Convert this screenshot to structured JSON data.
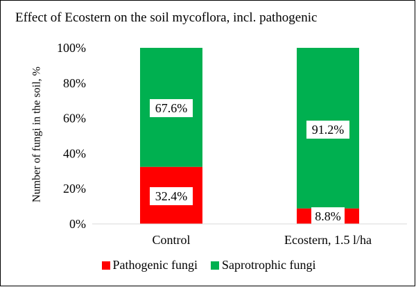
{
  "chart_data": {
    "type": "bar",
    "stacked": true,
    "percent": true,
    "title": "Effect of Ecostern on the soil mycoflora, incl. pathogenic",
    "xlabel": "",
    "ylabel": "Number of fungi in the soil, %",
    "categories": [
      "Control",
      "Ecostern, 1.5 l/ha"
    ],
    "series": [
      {
        "name": "Pathogenic fungi",
        "color": "#ff0000",
        "values": [
          32.4,
          8.8
        ],
        "labels": [
          "32.4%",
          "8.8%"
        ]
      },
      {
        "name": "Saprotrophic fungi",
        "color": "#00b050",
        "values": [
          67.6,
          91.2
        ],
        "labels": [
          "67.6%",
          "91.2%"
        ]
      }
    ],
    "ylim": [
      0,
      100
    ],
    "yticks": [
      "0%",
      "20%",
      "40%",
      "60%",
      "80%",
      "100%"
    ],
    "grid": false,
    "legend_position": "bottom"
  }
}
